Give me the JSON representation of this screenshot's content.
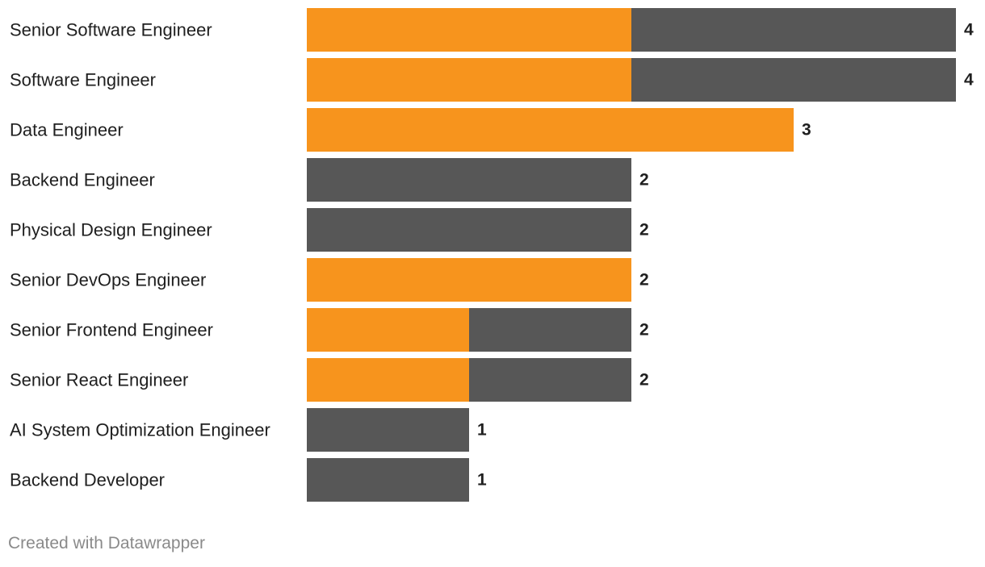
{
  "chart_data": {
    "type": "bar",
    "orientation": "horizontal",
    "stacked": true,
    "categories": [
      "Senior Software Engineer",
      "Software Engineer",
      "Data Engineer",
      "Backend Engineer",
      "Physical Design Engineer",
      "Senior DevOps Engineer",
      "Senior Frontend Engineer",
      "Senior React Engineer",
      "AI System Optimization Engineer",
      "Backend Developer"
    ],
    "series": [
      {
        "color": "#f7941d",
        "values": [
          2,
          2,
          3,
          0,
          0,
          2,
          1,
          1,
          0,
          0
        ]
      },
      {
        "color": "#575757",
        "values": [
          2,
          2,
          0,
          2,
          2,
          0,
          1,
          1,
          1,
          1
        ]
      }
    ],
    "totals": [
      4,
      4,
      3,
      2,
      2,
      2,
      2,
      2,
      1,
      1
    ],
    "xlim": [
      0,
      4
    ],
    "grid": false,
    "legend": "none",
    "title": "",
    "xlabel": "",
    "ylabel": ""
  },
  "footer": {
    "credit": "Created with Datawrapper"
  }
}
